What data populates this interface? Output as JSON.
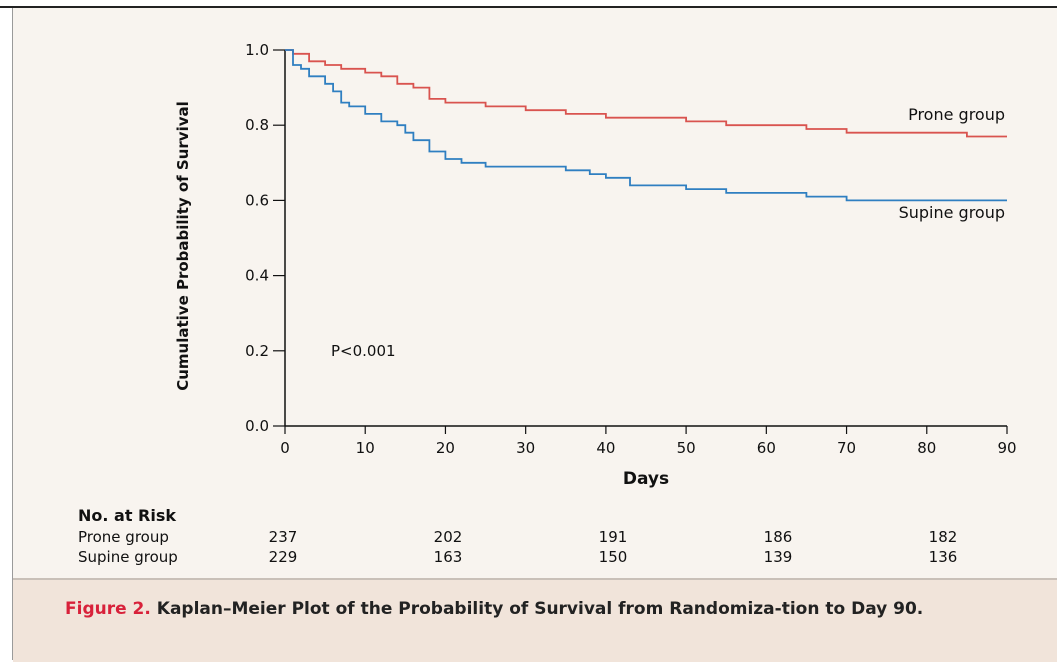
{
  "chart_data": {
    "type": "line",
    "title": "",
    "xlabel": "Days",
    "ylabel": "Cumulative Probability of Survival",
    "xlim": [
      0,
      90
    ],
    "ylim": [
      0.0,
      1.0
    ],
    "x_ticks": [
      0,
      10,
      20,
      30,
      40,
      50,
      60,
      70,
      80,
      90
    ],
    "y_ticks": [
      "0.0",
      "0.2",
      "0.4",
      "0.6",
      "0.8",
      "1.0"
    ],
    "grid": false,
    "annotation": "P<0.001",
    "series": [
      {
        "name": "Prone group",
        "color": "#d9534f",
        "points": [
          [
            0,
            1.0
          ],
          [
            1,
            0.99
          ],
          [
            3,
            0.97
          ],
          [
            5,
            0.96
          ],
          [
            7,
            0.95
          ],
          [
            10,
            0.94
          ],
          [
            12,
            0.93
          ],
          [
            14,
            0.91
          ],
          [
            16,
            0.9
          ],
          [
            18,
            0.87
          ],
          [
            20,
            0.86
          ],
          [
            25,
            0.85
          ],
          [
            30,
            0.84
          ],
          [
            35,
            0.83
          ],
          [
            40,
            0.82
          ],
          [
            45,
            0.82
          ],
          [
            50,
            0.81
          ],
          [
            55,
            0.8
          ],
          [
            60,
            0.8
          ],
          [
            65,
            0.79
          ],
          [
            70,
            0.78
          ],
          [
            75,
            0.78
          ],
          [
            80,
            0.78
          ],
          [
            85,
            0.77
          ],
          [
            90,
            0.77
          ]
        ]
      },
      {
        "name": "Supine group",
        "color": "#2f7fc1",
        "points": [
          [
            0,
            1.0
          ],
          [
            1,
            0.96
          ],
          [
            2,
            0.95
          ],
          [
            3,
            0.93
          ],
          [
            5,
            0.91
          ],
          [
            6,
            0.89
          ],
          [
            7,
            0.86
          ],
          [
            8,
            0.85
          ],
          [
            10,
            0.83
          ],
          [
            12,
            0.81
          ],
          [
            14,
            0.8
          ],
          [
            15,
            0.78
          ],
          [
            16,
            0.76
          ],
          [
            18,
            0.73
          ],
          [
            20,
            0.71
          ],
          [
            22,
            0.7
          ],
          [
            25,
            0.69
          ],
          [
            30,
            0.69
          ],
          [
            35,
            0.68
          ],
          [
            38,
            0.67
          ],
          [
            40,
            0.66
          ],
          [
            43,
            0.64
          ],
          [
            50,
            0.63
          ],
          [
            55,
            0.62
          ],
          [
            60,
            0.62
          ],
          [
            65,
            0.61
          ],
          [
            70,
            0.6
          ],
          [
            80,
            0.6
          ],
          [
            90,
            0.6
          ]
        ]
      }
    ]
  },
  "risk_table": {
    "title": "No. at Risk",
    "timepoints": [
      0,
      20,
      40,
      60,
      80
    ],
    "rows": [
      {
        "label": "Prone group",
        "values": [
          "237",
          "202",
          "191",
          "186",
          "182"
        ]
      },
      {
        "label": "Supine group",
        "values": [
          "229",
          "163",
          "150",
          "139",
          "136"
        ]
      }
    ]
  },
  "caption": {
    "label": "Figure 2.",
    "text": "Kaplan–Meier Plot of the Probability of Survival from Randomiza-tion to Day 90."
  }
}
